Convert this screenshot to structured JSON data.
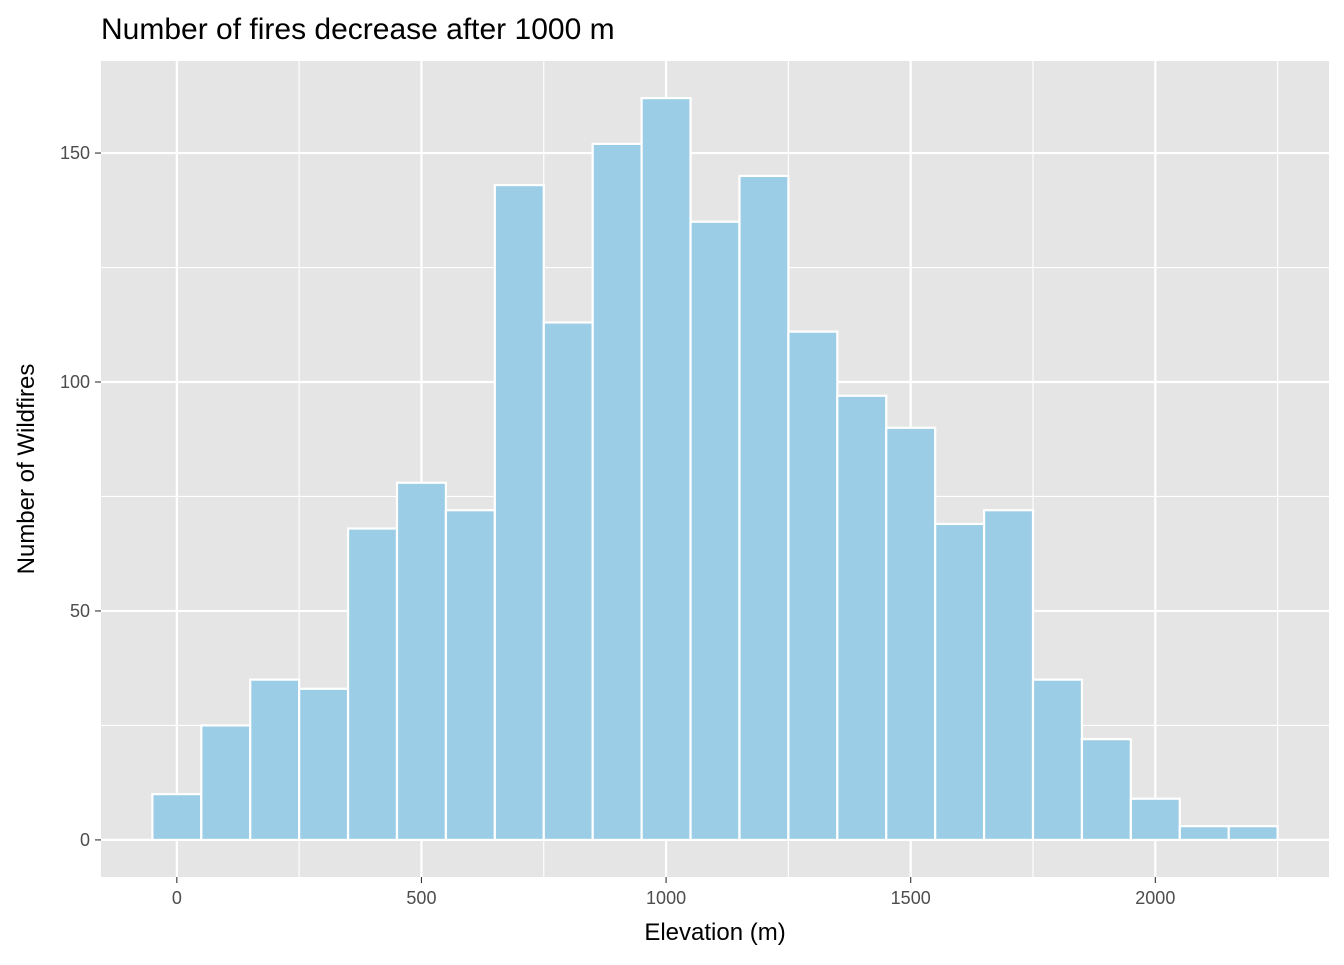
{
  "chart_data": {
    "type": "bar",
    "title": "Number of fires decrease after 1000 m",
    "xlabel": "Elevation (m)",
    "ylabel": "Number of Wildfires",
    "binwidth": 100,
    "x": [
      0,
      100,
      200,
      300,
      400,
      500,
      600,
      700,
      800,
      900,
      1000,
      1100,
      1200,
      1300,
      1400,
      1500,
      1600,
      1700,
      1800,
      1900,
      2000,
      2100,
      2200
    ],
    "values": [
      10,
      25,
      35,
      33,
      68,
      78,
      72,
      143,
      113,
      152,
      162,
      135,
      145,
      111,
      97,
      90,
      69,
      72,
      35,
      22,
      9,
      3,
      3
    ],
    "xlim": [
      -155,
      2355
    ],
    "ylim": [
      -8.1,
      170.1
    ],
    "x_ticks": [
      0,
      500,
      1000,
      1500,
      2000
    ],
    "x_tick_labels": [
      "0",
      "500",
      "1000",
      "1500",
      "2000"
    ],
    "y_ticks": [
      0,
      50,
      100,
      150
    ],
    "y_tick_labels": [
      "0",
      "50",
      "100",
      "150"
    ],
    "grid": true,
    "colors": {
      "bar_fill": "#9ccde6",
      "bar_outline": "#ffffff",
      "panel_background": "#e5e5e5",
      "gridline": "#ffffff",
      "text": "#000000",
      "tick_text": "#4d4d4d",
      "tick_mark": "#333333"
    }
  }
}
